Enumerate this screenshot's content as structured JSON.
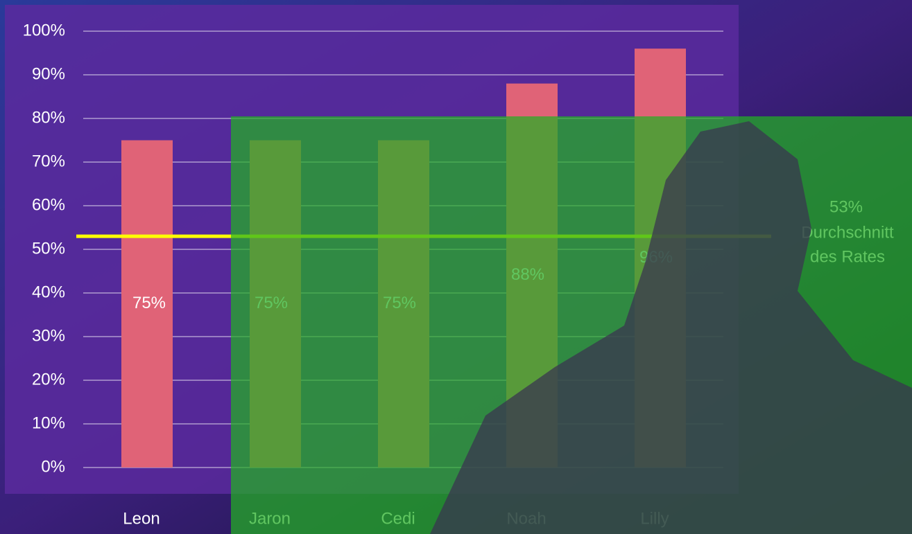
{
  "chart_data": {
    "type": "bar",
    "categories": [
      "Leon",
      "Jaron",
      "Cedi",
      "Noah",
      "Lilly"
    ],
    "values": [
      75,
      75,
      75,
      88,
      96
    ],
    "value_labels": [
      "75%",
      "75%",
      "75%",
      "88%",
      "96%"
    ],
    "color": "#e06377",
    "ylim": [
      0,
      100
    ],
    "yticks": [
      {
        "value": 0,
        "label": "0%"
      },
      {
        "value": 10,
        "label": "10%"
      },
      {
        "value": 20,
        "label": "20%"
      },
      {
        "value": 30,
        "label": "30%"
      },
      {
        "value": 40,
        "label": "40%"
      },
      {
        "value": 50,
        "label": "50%"
      },
      {
        "value": 60,
        "label": "60%"
      },
      {
        "value": 70,
        "label": "70%"
      },
      {
        "value": 80,
        "label": "80%"
      },
      {
        "value": 90,
        "label": "90%"
      },
      {
        "value": 100,
        "label": "100%"
      }
    ],
    "grid": true,
    "reference_line": {
      "value": 53,
      "label": "53%",
      "text": [
        "Durchschnitt",
        "des Rates"
      ],
      "color": "#ffff00"
    }
  }
}
